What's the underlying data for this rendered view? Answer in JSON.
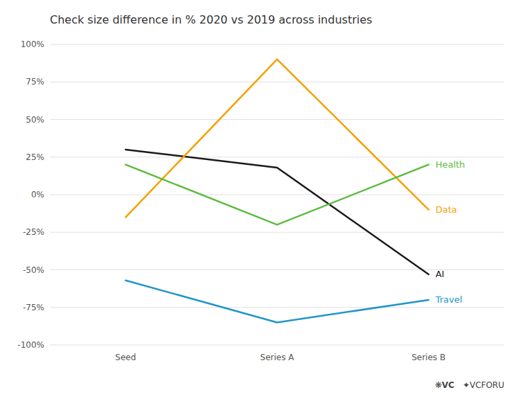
{
  "chart_data": {
    "type": "line",
    "title": "Check size difference in % 2020 vs 2019 across industries",
    "categories": [
      "Seed",
      "Series A",
      "Series B"
    ],
    "series": [
      {
        "name": "AI",
        "color": "#1a1a1a",
        "values": [
          30,
          18,
          -53
        ]
      },
      {
        "name": "Data",
        "color": "#F5A000",
        "values": [
          -15,
          90,
          -10
        ]
      },
      {
        "name": "Health",
        "color": "#5DBB3F",
        "values": [
          20,
          -20,
          20
        ]
      },
      {
        "name": "Travel",
        "color": "#2196C8",
        "values": [
          -57,
          -85,
          -70
        ]
      }
    ],
    "ylim": [
      -100,
      100
    ],
    "yticks": [
      {
        "value": -100,
        "label": "-100%"
      },
      {
        "value": -75,
        "label": "-75%"
      },
      {
        "value": -50,
        "label": "-50%"
      },
      {
        "value": -25,
        "label": "-25%"
      },
      {
        "value": 0,
        "label": "0%"
      },
      {
        "value": 25,
        "label": "25%"
      },
      {
        "value": 50,
        "label": "50%"
      },
      {
        "value": 75,
        "label": "75%"
      },
      {
        "value": 100,
        "label": "100%"
      }
    ],
    "grid": true,
    "annotations": [
      "❋VC",
      "✦VCFORU"
    ]
  }
}
